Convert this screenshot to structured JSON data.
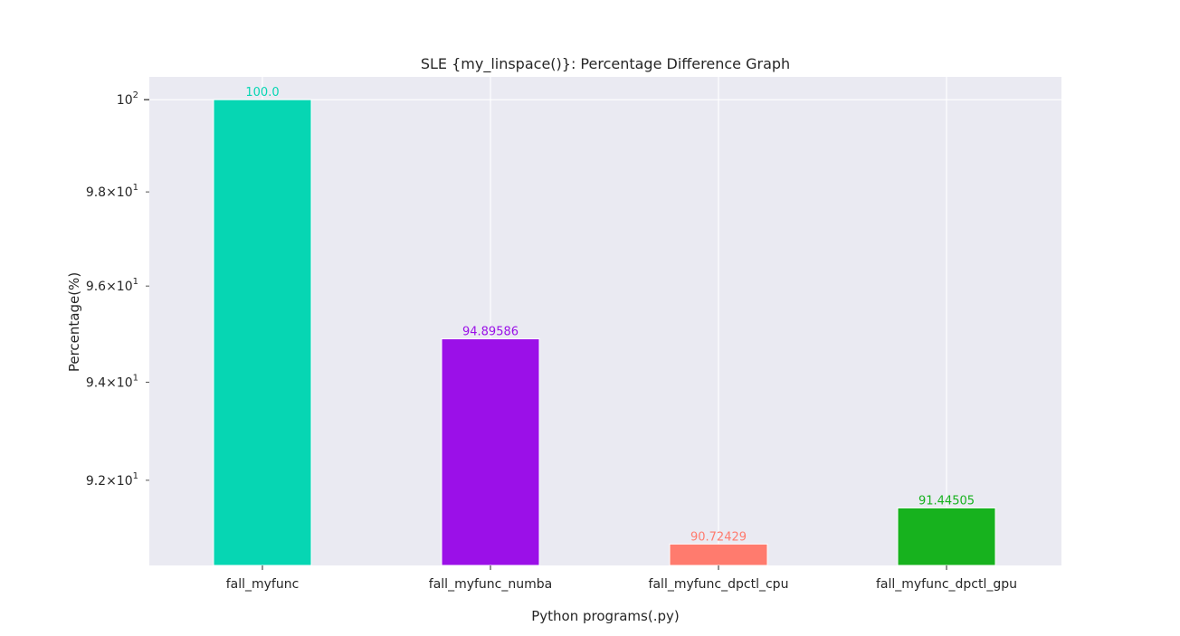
{
  "chart_data": {
    "type": "bar",
    "title": "SLE {my_linspace()}: Percentage Difference Graph",
    "xlabel": "Python programs(.py)",
    "ylabel": "Percentage(%)",
    "yscale": "log",
    "ylim": [
      90.3,
      100.5
    ],
    "grid": true,
    "background": "#eaeaf2",
    "categories": [
      "fall_myfunc",
      "fall_myfunc_numba",
      "fall_myfunc_dpctl_cpu",
      "fall_myfunc_dpctl_gpu"
    ],
    "values": [
      100.0,
      94.89586,
      90.72429,
      91.44505
    ],
    "value_labels": [
      "100.0",
      "94.89586",
      "90.72429",
      "91.44505"
    ],
    "colors": [
      "#06d6b3",
      "#9b10e8",
      "#ff7b6e",
      "#17b21e"
    ],
    "yticks": [
      {
        "value": 92,
        "mantissa": "9.2",
        "times": "×",
        "base": "10",
        "exp": "1"
      },
      {
        "value": 94,
        "mantissa": "9.4",
        "times": "×",
        "base": "10",
        "exp": "1"
      },
      {
        "value": 96,
        "mantissa": "9.6",
        "times": "×",
        "base": "10",
        "exp": "1"
      },
      {
        "value": 98,
        "mantissa": "9.8",
        "times": "×",
        "base": "10",
        "exp": "1"
      },
      {
        "value": 100,
        "mantissa": "",
        "times": "",
        "base": "10",
        "exp": "2"
      }
    ]
  }
}
